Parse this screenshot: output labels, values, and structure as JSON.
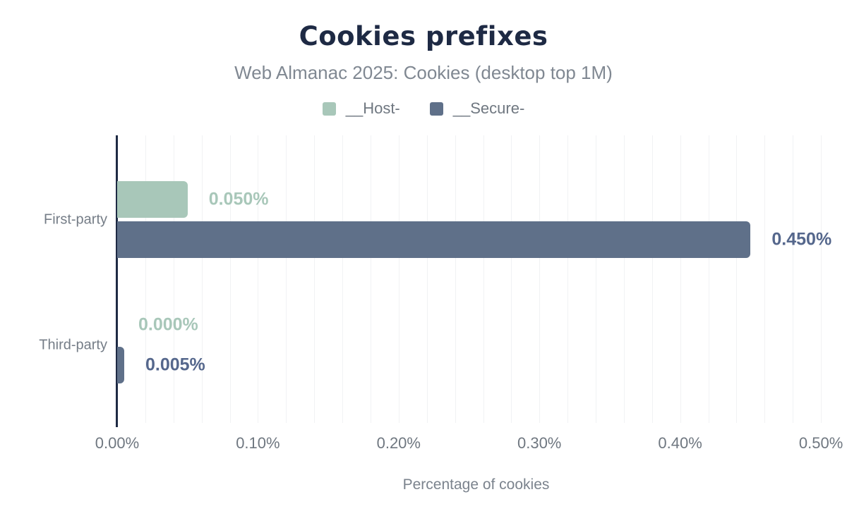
{
  "chart_data": {
    "type": "bar",
    "orientation": "horizontal",
    "title": "Cookies prefixes",
    "subtitle": "Web Almanac 2025: Cookies (desktop top 1M)",
    "xlabel": "Percentage of cookies",
    "categories": [
      "First-party",
      "Third-party"
    ],
    "series": [
      {
        "name": "__Host-",
        "color": "#a8c7b9",
        "label_color": "#a8c7b9",
        "values": [
          0.05,
          0.0
        ],
        "value_labels": [
          "0.050%",
          "0.000%"
        ]
      },
      {
        "name": "__Secure-",
        "color": "#5f7089",
        "label_color": "#55678c",
        "values": [
          0.45,
          0.005
        ],
        "value_labels": [
          "0.450%",
          "0.005%"
        ]
      }
    ],
    "xlim": [
      0,
      0.51
    ],
    "xticks": [
      0,
      0.1,
      0.2,
      0.3,
      0.4,
      0.5
    ],
    "xtick_labels": [
      "0.00%",
      "0.10%",
      "0.20%",
      "0.30%",
      "0.40%",
      "0.50%"
    ],
    "grid": true,
    "grid_step": 0.02,
    "legend_position": "top"
  },
  "colors": {
    "background": "#ffffff",
    "title": "#1e2a44",
    "subtitle": "#808892",
    "axis_line": "#1e2a44",
    "gridline": "#f1f2f4",
    "tick_label": "#6f7780",
    "category_label": "#757d87",
    "legend_label": "#6f7780"
  }
}
